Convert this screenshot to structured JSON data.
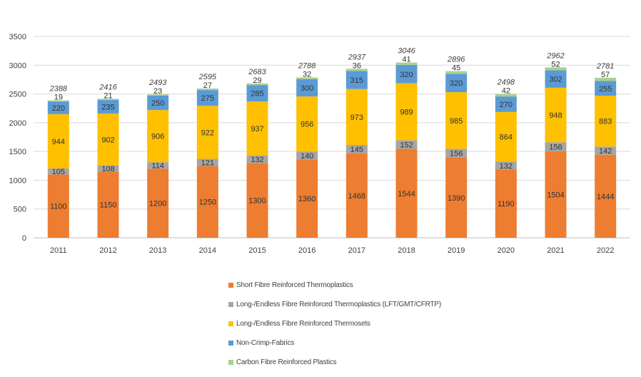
{
  "chart_data": {
    "type": "stacked-bar",
    "title": "",
    "xlabel": "",
    "ylabel": "",
    "ylim": [
      0,
      3500
    ],
    "yticks": [
      0,
      500,
      1000,
      1500,
      2000,
      2500,
      3000,
      3500
    ],
    "grid": true,
    "legend_position": "bottom",
    "categories": [
      "2011",
      "2012",
      "2013",
      "2014",
      "2015",
      "2016",
      "2017",
      "2018",
      "2019",
      "2020",
      "2021",
      "2022"
    ],
    "series": [
      {
        "name": "Short Fibre Reinforced Thermoplastics",
        "color": "#ED7D31",
        "values": [
          1100,
          1150,
          1200,
          1250,
          1300,
          1360,
          1468,
          1544,
          1390,
          1190,
          1504,
          1444
        ]
      },
      {
        "name": "Long-/Endless Fibre Reinforced Thermoplastics (LFT/GMT/CFRTP)",
        "color": "#A5A5A5",
        "values": [
          105,
          108,
          114,
          121,
          132,
          140,
          145,
          152,
          156,
          132,
          156,
          142
        ]
      },
      {
        "name": "Long-/Endless Fibre Reinforced Thermosets",
        "color": "#FFC000",
        "values": [
          944,
          902,
          906,
          922,
          937,
          956,
          973,
          989,
          985,
          864,
          948,
          883
        ]
      },
      {
        "name": "Non-Crimp-Fabrics",
        "color": "#5B9BD5",
        "values": [
          220,
          235,
          250,
          275,
          285,
          300,
          315,
          320,
          320,
          270,
          302,
          255
        ]
      },
      {
        "name": "Carbon Fibre Reinforced Plastics",
        "color": "#A9D18E",
        "values": [
          19,
          21,
          23,
          27,
          29,
          32,
          36,
          41,
          45,
          42,
          52,
          57
        ]
      }
    ],
    "totals": [
      2388,
      2416,
      2493,
      2595,
      2683,
      2788,
      2937,
      3046,
      2896,
      2498,
      2962,
      2781
    ]
  }
}
